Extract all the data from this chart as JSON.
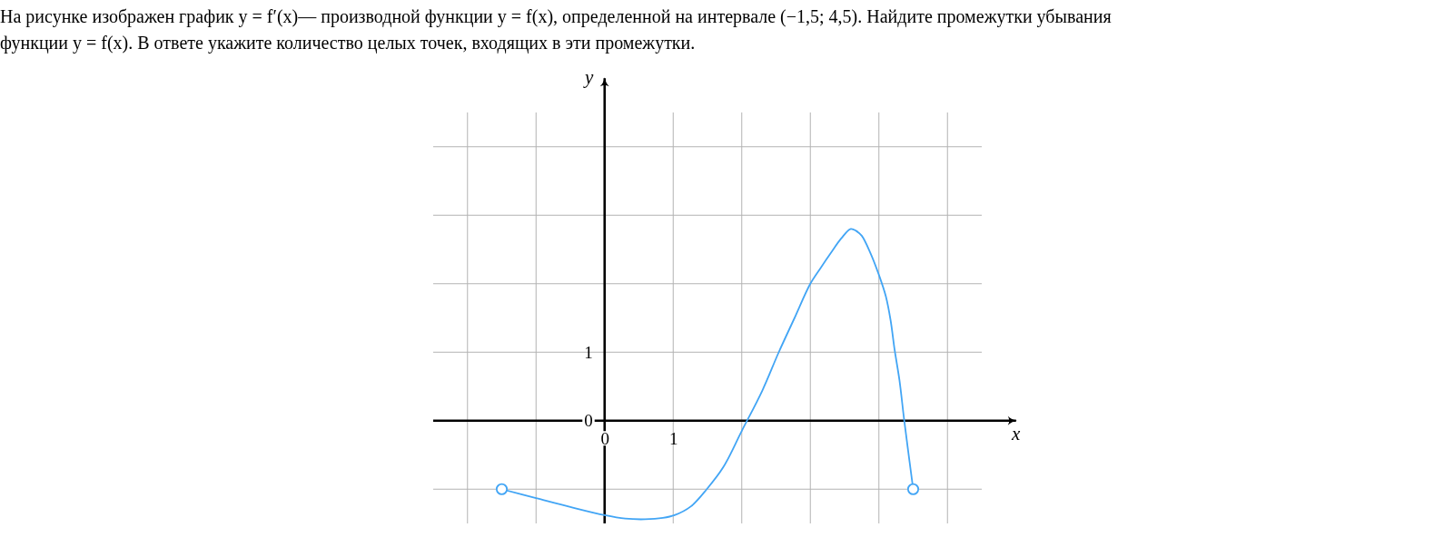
{
  "chart_data": {
    "type": "line",
    "title": "На рисунке изображен график y = f′(x)— производной функции y = f(x), определенной на интервале (−1,5; 4,5). Найдите промежутки убывания функции y = f(x). В ответе укажите количество целых точек, входящих в эти промежутки.",
    "xlabel": "x",
    "ylabel": "y",
    "xlim": [
      -2.5,
      6
    ],
    "ylim": [
      -1.5,
      5
    ],
    "xticks": [
      {
        "value": -2,
        "label": null
      },
      {
        "value": -1,
        "label": null
      },
      0,
      1,
      {
        "value": 2,
        "label": null
      },
      {
        "value": 3,
        "label": null
      },
      {
        "value": 4,
        "label": null
      },
      {
        "value": 5,
        "label": null
      }
    ],
    "yticks": [
      {
        "value": -1,
        "label": null
      },
      0,
      1,
      {
        "value": 2,
        "label": null
      },
      {
        "value": 3,
        "label": null
      },
      {
        "value": 4,
        "label": null
      }
    ],
    "grid": true,
    "series": [
      {
        "type": "line",
        "color": "#42a5f5",
        "x": [
          -1.5,
          -1.0,
          -0.5,
          0,
          0.3,
          0.59,
          0.85,
          1.02,
          1.26,
          1.49,
          1.73,
          2.0,
          2.3,
          2.54,
          2.77,
          3.0,
          3.15,
          3.3,
          3.45,
          3.59,
          3.67,
          3.75,
          3.88,
          4.0,
          4.1,
          4.17,
          4.23,
          4.3,
          4.37,
          4.5
        ],
        "values": [
          -1.0,
          -1.13,
          -1.26,
          -1.38,
          -1.43,
          -1.44,
          -1.42,
          -1.38,
          -1.25,
          -1.0,
          -0.68,
          -0.15,
          0.44,
          1.0,
          1.5,
          2.0,
          2.23,
          2.45,
          2.66,
          2.8,
          2.77,
          2.7,
          2.44,
          2.13,
          1.82,
          1.47,
          1.03,
          0.59,
          0,
          -1.0
        ]
      },
      {
        "type": "scatter",
        "color": "#42a5f5",
        "marker": "circle",
        "x": [
          -1.5,
          4.5
        ],
        "values": [
          -1,
          -1
        ]
      }
    ]
  }
}
